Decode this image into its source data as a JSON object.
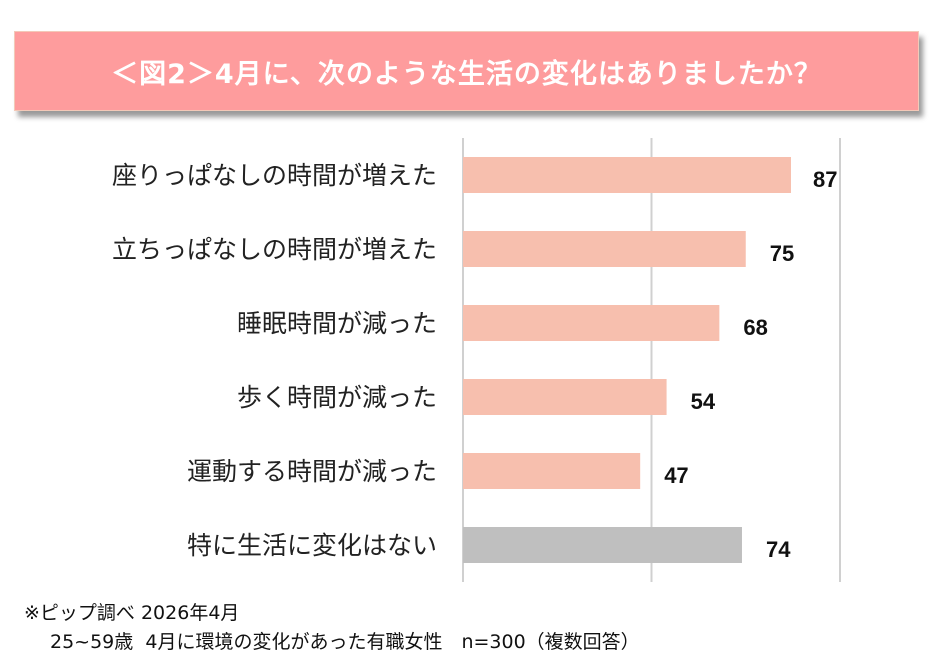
{
  "title": "＜図2＞4月に、次のような生活の変化はありましたか？",
  "chart_data": {
    "type": "bar",
    "orientation": "horizontal",
    "categories": [
      "座りっぱなしの時間が増えた",
      "立ちっぱなしの時間が増えた",
      "睡眠時間が減った",
      "歩く時間が減った",
      "運動する時間が減った",
      "特に生活に変化はない"
    ],
    "values": [
      87,
      75,
      68,
      54,
      47,
      74
    ],
    "colors": [
      "#F7BFAE",
      "#F7BFAE",
      "#F7BFAE",
      "#F7BFAE",
      "#F7BFAE",
      "#BFBFBF"
    ],
    "xlim": [
      0,
      100
    ],
    "gridlines": [
      0,
      50,
      100
    ],
    "grid": true
  },
  "footnote": {
    "line1": "※ピップ調べ 2026年4月",
    "line2": "25~59歳  4月に環境の変化があった有職女性　n=300（複数回答）"
  }
}
